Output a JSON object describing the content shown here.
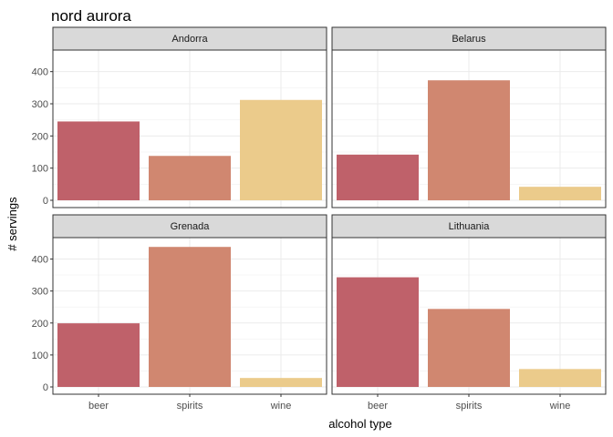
{
  "chart_data": {
    "type": "bar",
    "title": "nord aurora",
    "xlabel": "alcohol type",
    "ylabel": "# servings",
    "categories": [
      "beer",
      "spirits",
      "wine"
    ],
    "ylim": [
      0,
      450
    ],
    "yticks": [
      0,
      100,
      200,
      300,
      400
    ],
    "grid": true,
    "facets": [
      {
        "label": "Andorra",
        "values": [
          245,
          138,
          312
        ]
      },
      {
        "label": "Belarus",
        "values": [
          142,
          373,
          42
        ]
      },
      {
        "label": "Grenada",
        "values": [
          199,
          438,
          28
        ]
      },
      {
        "label": "Lithuania",
        "values": [
          343,
          244,
          56
        ]
      }
    ],
    "colors": {
      "beer": "#BF616A",
      "spirits": "#D08770",
      "wine": "#EBCB8B"
    }
  }
}
